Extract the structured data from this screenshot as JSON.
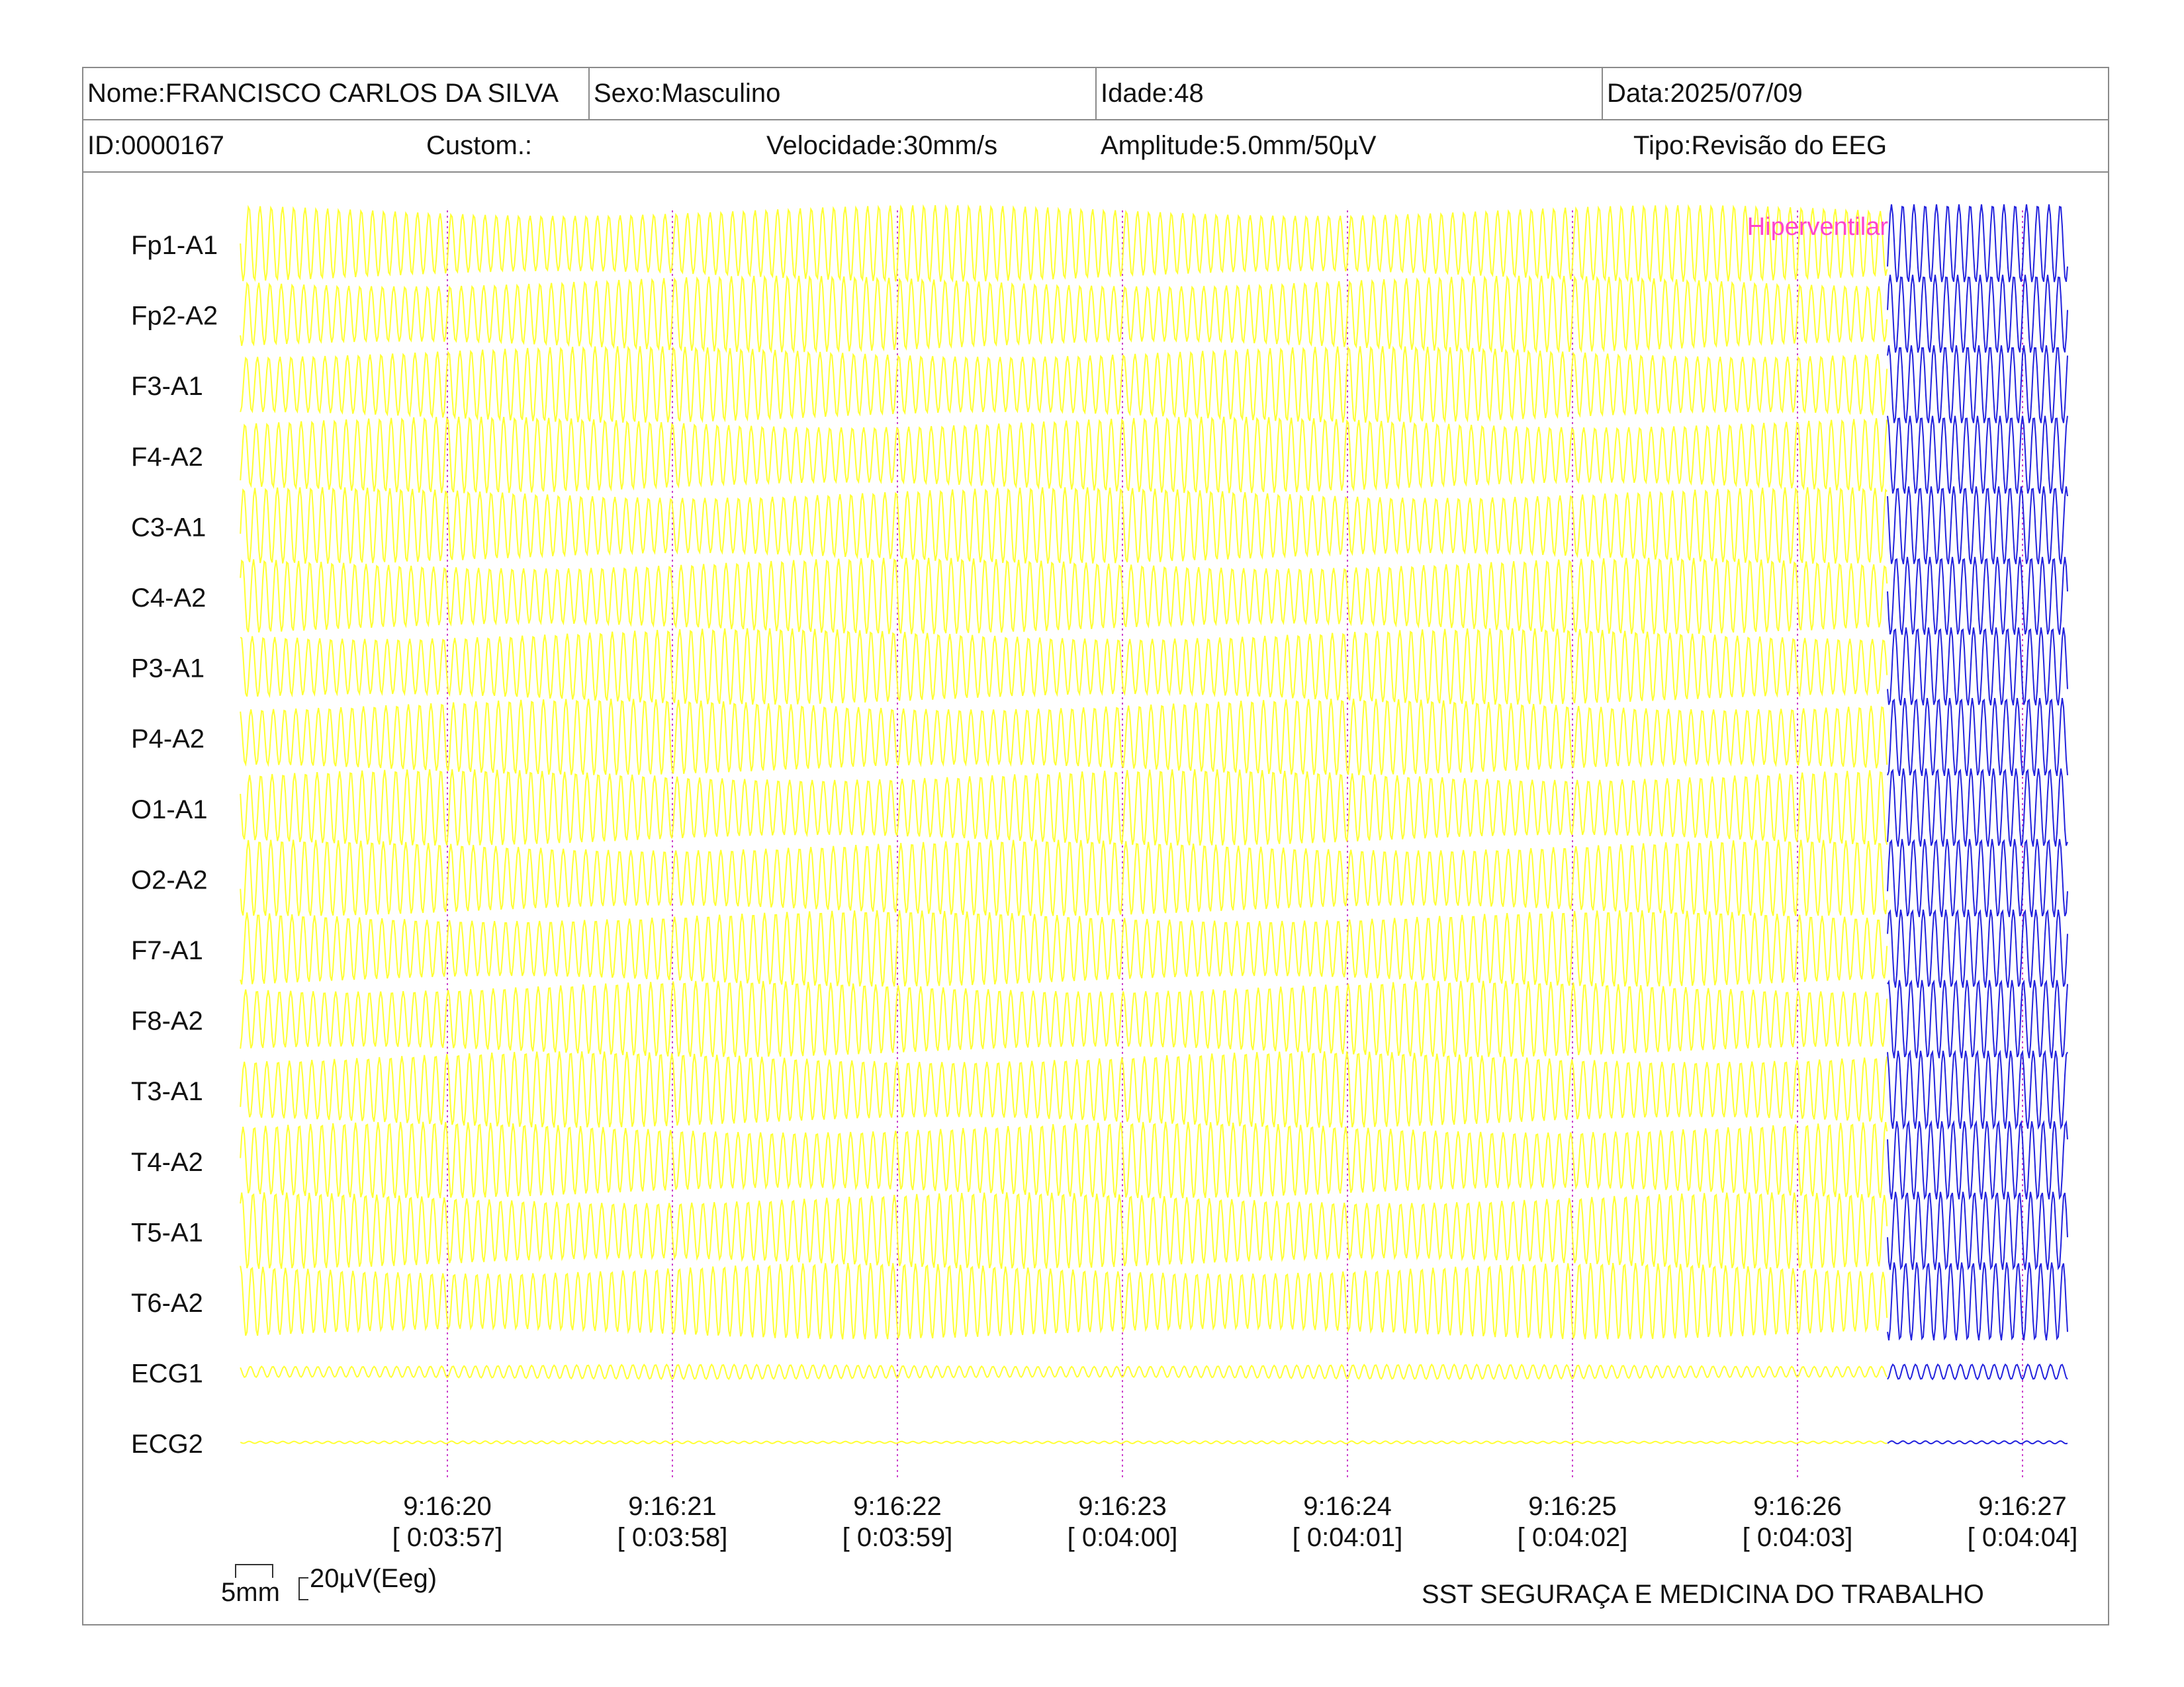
{
  "header": {
    "nome": "Nome:FRANCISCO CARLOS DA SILVA",
    "sexo": "Sexo:Masculino",
    "idade": "Idade:48",
    "data": "Data:2025/07/09",
    "id": "ID:0000167",
    "custom": "Custom.:",
    "velocidade": "Velocidade:30mm/s",
    "amplitude": "Amplitude:5.0mm/50µV",
    "tipo": "Tipo:Revisão do EEG"
  },
  "footer": {
    "scale_time": "5mm",
    "scale_amp": "20µV(Eeg)",
    "organization": "SST SEGURAÇA E MEDICINA DO TRABALHO"
  },
  "annotation": {
    "text": "Hiperventilar",
    "color": "#ff44cc"
  },
  "colors": {
    "trace_main": "#ffff33",
    "trace_hv": "#2222dd",
    "marker": "#cc44cc",
    "frame": "#8a8a8a"
  },
  "chart_data": {
    "type": "line",
    "channels": [
      "Fp1-A1",
      "Fp2-A2",
      "F3-A1",
      "F4-A2",
      "C3-A1",
      "C4-A2",
      "P3-A1",
      "P4-A2",
      "O1-A1",
      "O2-A2",
      "F7-A1",
      "F8-A2",
      "T3-A1",
      "T4-A2",
      "T5-A1",
      "T6-A2",
      "ECG1",
      "ECG2"
    ],
    "time_ticks": [
      {
        "clock": "9:16:20",
        "elapsed": "[ 0:03:57]"
      },
      {
        "clock": "9:16:21",
        "elapsed": "[ 0:03:58]"
      },
      {
        "clock": "9:16:22",
        "elapsed": "[ 0:03:59]"
      },
      {
        "clock": "9:16:23",
        "elapsed": "[ 0:04:00]"
      },
      {
        "clock": "9:16:24",
        "elapsed": "[ 0:04:01]"
      },
      {
        "clock": "9:16:25",
        "elapsed": "[ 0:04:02]"
      },
      {
        "clock": "9:16:26",
        "elapsed": "[ 0:04:03]"
      },
      {
        "clock": "9:16:27",
        "elapsed": "[ 0:04:04]"
      }
    ],
    "x_range_s": [
      -0.92,
      7.2
    ],
    "hyperventilation_start_s": 6.4,
    "wave_frequency_hz": 20
  }
}
